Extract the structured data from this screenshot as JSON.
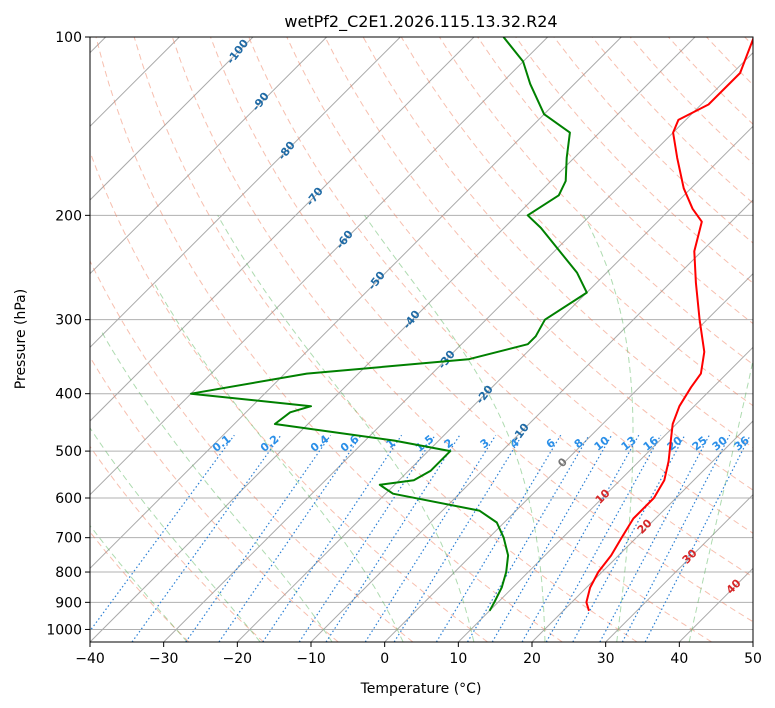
{
  "chart_data": {
    "type": "line",
    "title": "wetPf2_C2E1.2026.115.13.32.R24",
    "xlabel": "Temperature (°C)",
    "ylabel": "Pressure (hPa)",
    "xlim": [
      -40,
      50
    ],
    "ylim": [
      1050,
      100
    ],
    "y_scale": "log",
    "x_ticks": [
      -40,
      -30,
      -20,
      -10,
      0,
      10,
      20,
      30,
      40,
      50
    ],
    "y_ticks": [
      100,
      200,
      300,
      400,
      500,
      600,
      700,
      800,
      900,
      1000
    ],
    "grid": true,
    "skew": true,
    "series": [
      {
        "color": "#ff0000",
        "pressure": [
          930,
          900,
          850,
          800,
          750,
          700,
          650,
          600,
          560,
          520,
          480,
          450,
          420,
          390,
          370,
          340,
          300,
          260,
          230,
          205,
          195,
          180,
          160,
          145,
          138,
          130,
          115,
          100
        ],
        "temperature": [
          23.5,
          22.0,
          20.5,
          19.5,
          19.0,
          18.0,
          17.0,
          17.0,
          16.0,
          14.0,
          11.5,
          9.5,
          8.0,
          7.0,
          6.5,
          4.0,
          -1.0,
          -6.5,
          -11.0,
          -14.0,
          -17.0,
          -21.0,
          -26.0,
          -30.0,
          -31.0,
          -29.0,
          -29.0,
          -32.0
        ]
      },
      {
        "color": "#008000",
        "pressure": [
          930,
          900,
          850,
          800,
          750,
          700,
          660,
          630,
          590,
          570,
          560,
          540,
          500,
          480,
          450,
          430,
          420,
          400,
          370,
          350,
          330,
          320,
          300,
          270,
          250,
          210,
          200,
          185,
          175,
          160,
          145,
          135,
          120,
          110,
          100
        ],
        "temperature": [
          10.0,
          9.5,
          8.5,
          7.0,
          5.0,
          2.0,
          -1.0,
          -5.0,
          -19.0,
          -22.0,
          -18.0,
          -17.0,
          -17.0,
          -26.0,
          -44.5,
          -44.0,
          -42.0,
          -60.0,
          -47.0,
          -27.0,
          -21.0,
          -21.0,
          -22.0,
          -20.0,
          -24.0,
          -35.0,
          -38.5,
          -37.0,
          -38.0,
          -41.0,
          -44.0,
          -50.0,
          -56.0,
          -60.0,
          -66.0
        ]
      }
    ],
    "dry_adiabat_labels": [
      "-100",
      "-90",
      "-80",
      "-70",
      "-60",
      "-50",
      "-40",
      "-30",
      "-20",
      "-10"
    ],
    "mixing_ratio_labels": [
      "0.1",
      "0.2",
      "0.4",
      "0.6",
      "1",
      "1.5",
      "2",
      "3",
      "4",
      "6",
      "8",
      "10",
      "13",
      "16",
      "20",
      "25",
      "30",
      "36"
    ],
    "moist_adiabat_labels": [
      "0",
      "10",
      "20",
      "30",
      "40"
    ],
    "colors": {
      "temperature": "#ff0000",
      "dewpoint": "#008000",
      "dry_adiabat": "#f08060",
      "moist_adiabat": "#4caf50",
      "mixing_ratio": "#2a7fd4",
      "isotherm": "#999999",
      "dry_label": "#1f6aa5",
      "mixing_label": "#2a8fe8",
      "moist_label": "#d62728",
      "zero_label": "#777777"
    }
  }
}
